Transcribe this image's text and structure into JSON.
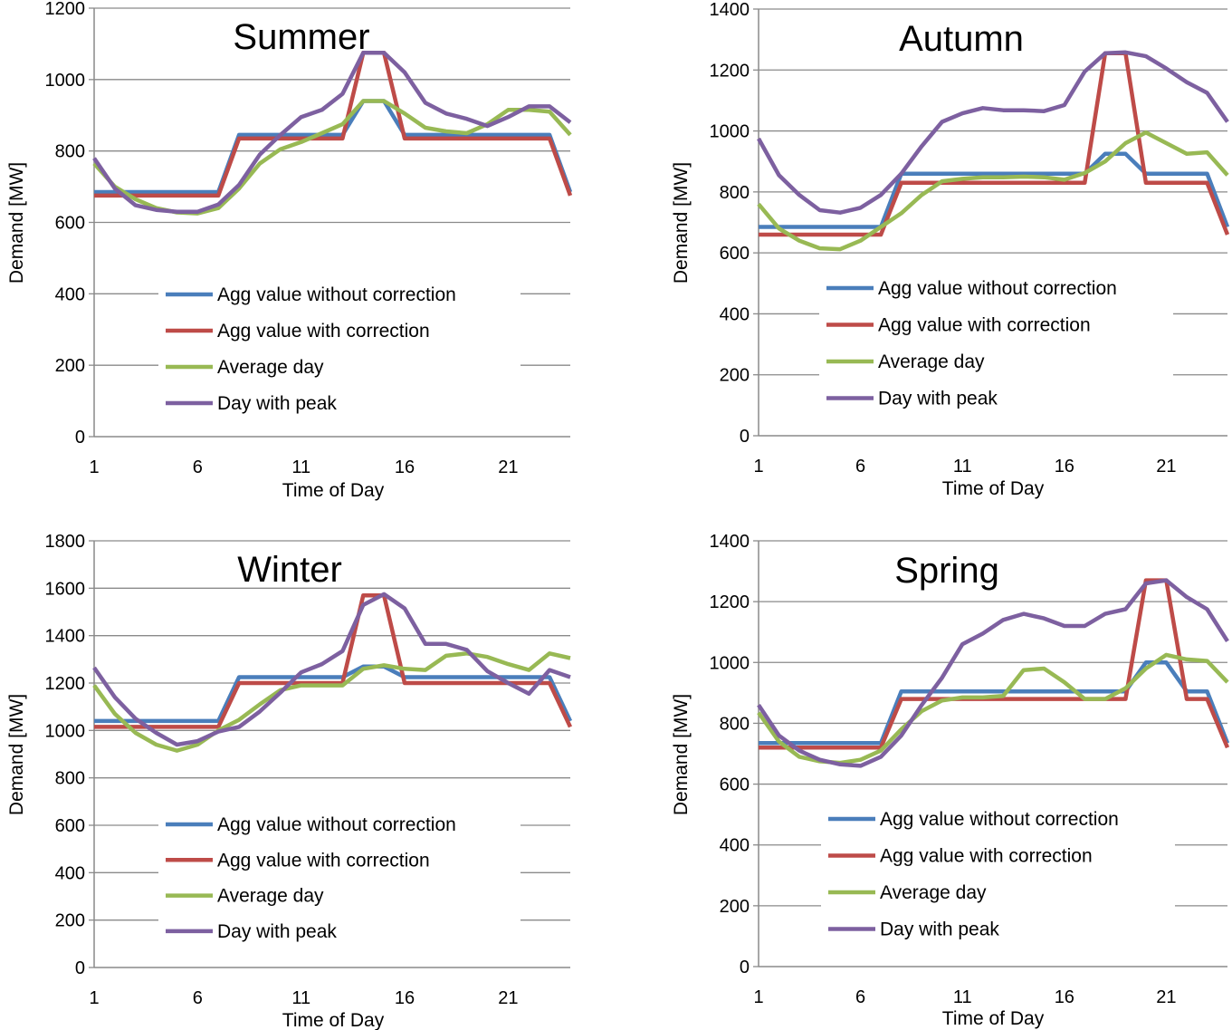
{
  "chart_data": [
    {
      "type": "line",
      "title": "Summer",
      "xlabel": "Time of Day",
      "ylabel": "Demand [MW]",
      "x": [
        1,
        2,
        3,
        4,
        5,
        6,
        7,
        8,
        9,
        10,
        11,
        12,
        13,
        14,
        15,
        16,
        17,
        18,
        19,
        20,
        21,
        22,
        23,
        24
      ],
      "xticks": [
        1,
        6,
        11,
        16,
        21
      ],
      "ylim": [
        0,
        1200
      ],
      "yticks": [
        0,
        200,
        400,
        600,
        800,
        1000,
        1200
      ],
      "grid": true,
      "legend": "center",
      "series": [
        {
          "name": "Agg value without correction",
          "color": "#4a7ebb",
          "values": [
            685,
            685,
            685,
            685,
            685,
            685,
            685,
            845,
            845,
            845,
            845,
            845,
            845,
            940,
            940,
            845,
            845,
            845,
            845,
            845,
            845,
            845,
            845,
            685
          ]
        },
        {
          "name": "Agg value with correction",
          "color": "#be4b48",
          "values": [
            675,
            675,
            675,
            675,
            675,
            675,
            675,
            835,
            835,
            835,
            835,
            835,
            835,
            1075,
            1075,
            835,
            835,
            835,
            835,
            835,
            835,
            835,
            835,
            675
          ]
        },
        {
          "name": "Average day",
          "color": "#98b954",
          "values": [
            765,
            700,
            665,
            640,
            628,
            625,
            640,
            695,
            765,
            805,
            825,
            850,
            875,
            940,
            940,
            905,
            865,
            855,
            850,
            875,
            915,
            915,
            910,
            845
          ]
        },
        {
          "name": "Day with peak",
          "color": "#7d60a0",
          "values": [
            780,
            695,
            648,
            635,
            630,
            630,
            650,
            705,
            790,
            845,
            895,
            915,
            960,
            1075,
            1075,
            1020,
            935,
            905,
            890,
            870,
            895,
            925,
            925,
            880
          ]
        }
      ]
    },
    {
      "type": "line",
      "title": "Autumn",
      "xlabel": "Time of Day",
      "ylabel": "Demand [MW]",
      "x": [
        1,
        2,
        3,
        4,
        5,
        6,
        7,
        8,
        9,
        10,
        11,
        12,
        13,
        14,
        15,
        16,
        17,
        18,
        19,
        20,
        21,
        22,
        23,
        24
      ],
      "xticks": [
        1,
        6,
        11,
        16,
        21
      ],
      "ylim": [
        0,
        1400
      ],
      "yticks": [
        0,
        200,
        400,
        600,
        800,
        1000,
        1200,
        1400
      ],
      "grid": true,
      "legend": "center",
      "series": [
        {
          "name": "Agg value without correction",
          "color": "#4a7ebb",
          "values": [
            685,
            685,
            685,
            685,
            685,
            685,
            685,
            860,
            860,
            860,
            860,
            860,
            860,
            860,
            860,
            860,
            860,
            925,
            925,
            860,
            860,
            860,
            860,
            685
          ]
        },
        {
          "name": "Agg value with correction",
          "color": "#be4b48",
          "values": [
            660,
            660,
            660,
            660,
            660,
            660,
            660,
            830,
            830,
            830,
            830,
            830,
            830,
            830,
            830,
            830,
            830,
            1255,
            1255,
            830,
            830,
            830,
            830,
            660
          ]
        },
        {
          "name": "Average day",
          "color": "#98b954",
          "values": [
            760,
            680,
            640,
            615,
            612,
            640,
            685,
            730,
            790,
            835,
            843,
            848,
            848,
            850,
            848,
            840,
            862,
            900,
            960,
            995,
            960,
            925,
            930,
            855
          ]
        },
        {
          "name": "Day with peak",
          "color": "#7d60a0",
          "values": [
            975,
            855,
            790,
            740,
            732,
            748,
            790,
            860,
            950,
            1030,
            1058,
            1075,
            1068,
            1068,
            1065,
            1085,
            1195,
            1255,
            1258,
            1245,
            1205,
            1160,
            1125,
            1030
          ]
        }
      ]
    },
    {
      "type": "line",
      "title": "Winter",
      "xlabel": "Time of Day",
      "ylabel": "Demand [MW]",
      "x": [
        1,
        2,
        3,
        4,
        5,
        6,
        7,
        8,
        9,
        10,
        11,
        12,
        13,
        14,
        15,
        16,
        17,
        18,
        19,
        20,
        21,
        22,
        23,
        24
      ],
      "xticks": [
        1,
        6,
        11,
        16,
        21
      ],
      "ylim": [
        0,
        1800
      ],
      "yticks": [
        0,
        200,
        400,
        600,
        800,
        1000,
        1200,
        1400,
        1600,
        1800
      ],
      "grid": true,
      "legend": "center",
      "series": [
        {
          "name": "Agg value without correction",
          "color": "#4a7ebb",
          "values": [
            1040,
            1040,
            1040,
            1040,
            1040,
            1040,
            1040,
            1225,
            1225,
            1225,
            1225,
            1225,
            1225,
            1270,
            1270,
            1225,
            1225,
            1225,
            1225,
            1225,
            1225,
            1225,
            1225,
            1040
          ]
        },
        {
          "name": "Agg value with correction",
          "color": "#be4b48",
          "values": [
            1015,
            1015,
            1015,
            1015,
            1015,
            1015,
            1015,
            1200,
            1200,
            1200,
            1200,
            1200,
            1200,
            1570,
            1570,
            1200,
            1200,
            1200,
            1200,
            1200,
            1200,
            1200,
            1200,
            1015
          ]
        },
        {
          "name": "Average day",
          "color": "#98b954",
          "values": [
            1190,
            1070,
            990,
            940,
            915,
            940,
            1000,
            1045,
            1110,
            1170,
            1190,
            1190,
            1190,
            1260,
            1275,
            1260,
            1255,
            1315,
            1325,
            1310,
            1280,
            1255,
            1325,
            1305
          ]
        },
        {
          "name": "Day with peak",
          "color": "#7d60a0",
          "values": [
            1265,
            1140,
            1050,
            990,
            940,
            955,
            995,
            1015,
            1080,
            1160,
            1245,
            1280,
            1335,
            1530,
            1575,
            1515,
            1365,
            1365,
            1340,
            1250,
            1200,
            1155,
            1255,
            1225
          ]
        }
      ]
    },
    {
      "type": "line",
      "title": "Spring",
      "xlabel": "Time of Day",
      "ylabel": "Demand [MW]",
      "x": [
        1,
        2,
        3,
        4,
        5,
        6,
        7,
        8,
        9,
        10,
        11,
        12,
        13,
        14,
        15,
        16,
        17,
        18,
        19,
        20,
        21,
        22,
        23,
        24
      ],
      "xticks": [
        1,
        6,
        11,
        16,
        21
      ],
      "ylim": [
        0,
        1400
      ],
      "yticks": [
        0,
        200,
        400,
        600,
        800,
        1000,
        1200,
        1400
      ],
      "grid": true,
      "legend": "center",
      "series": [
        {
          "name": "Agg value without correction",
          "color": "#4a7ebb",
          "values": [
            735,
            735,
            735,
            735,
            735,
            735,
            735,
            905,
            905,
            905,
            905,
            905,
            905,
            905,
            905,
            905,
            905,
            905,
            905,
            1000,
            1000,
            905,
            905,
            735
          ]
        },
        {
          "name": "Agg value with correction",
          "color": "#be4b48",
          "values": [
            720,
            720,
            720,
            720,
            720,
            720,
            720,
            880,
            880,
            880,
            880,
            880,
            880,
            880,
            880,
            880,
            880,
            880,
            880,
            1270,
            1270,
            880,
            880,
            720
          ]
        },
        {
          "name": "Average day",
          "color": "#98b954",
          "values": [
            835,
            740,
            690,
            675,
            670,
            680,
            710,
            780,
            840,
            875,
            885,
            885,
            890,
            975,
            980,
            935,
            880,
            880,
            915,
            980,
            1025,
            1010,
            1005,
            935
          ]
        },
        {
          "name": "Day with peak",
          "color": "#7d60a0",
          "values": [
            860,
            760,
            710,
            680,
            665,
            660,
            690,
            760,
            860,
            950,
            1060,
            1095,
            1140,
            1160,
            1145,
            1120,
            1120,
            1160,
            1175,
            1260,
            1270,
            1215,
            1175,
            1070
          ]
        }
      ]
    }
  ]
}
